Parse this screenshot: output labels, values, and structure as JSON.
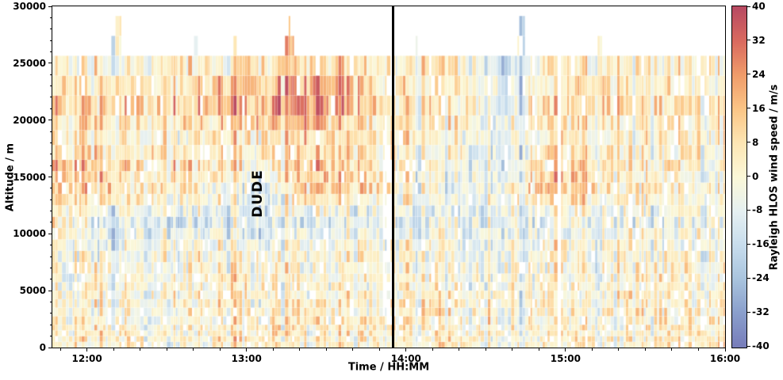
{
  "axes": {
    "x": {
      "label": "Time / HH:MM",
      "min": 11.783,
      "max": 16.0,
      "tick_values": [
        12,
        13,
        14,
        15,
        16
      ],
      "ticks": [
        "12:00",
        "13:00",
        "14:00",
        "15:00",
        "16:00"
      ],
      "minor_step_minutes": 10
    },
    "y": {
      "label": "Altitude / m",
      "min": 0,
      "max": 30000,
      "tick_values": [
        0,
        5000,
        10000,
        15000,
        20000,
        25000,
        30000
      ],
      "ticks": [
        "0",
        "5000",
        "10000",
        "15000",
        "20000",
        "25000",
        "30000"
      ],
      "minor_step": 1000
    }
  },
  "chart_data": {
    "type": "heatmap",
    "title": "",
    "x": {
      "min": 11.783,
      "max": 16.0,
      "unit": "hours"
    },
    "y": {
      "min": 0,
      "max": 30000,
      "unit": "m"
    },
    "color": {
      "min": -40,
      "max": 40,
      "label": "Rayleigh HLOS wind speed / m/s"
    },
    "colorbar_tick_values": [
      40,
      32,
      24,
      16,
      8,
      0,
      -8,
      -16,
      -24,
      -32,
      -40
    ],
    "colorbar_ticks": [
      "40",
      "32",
      "24",
      "16",
      "8",
      "0",
      "-8",
      "-16",
      "-24",
      "-32",
      "-40"
    ],
    "colormap_stops": [
      {
        "v": -40,
        "c": "#777dba"
      },
      {
        "v": -32,
        "c": "#8a9fcc"
      },
      {
        "v": -24,
        "c": "#a9c4de"
      },
      {
        "v": -16,
        "c": "#c8dded"
      },
      {
        "v": -8,
        "c": "#e6f0f1"
      },
      {
        "v": 0,
        "c": "#fbf8d8"
      },
      {
        "v": 8,
        "c": "#fde6b4"
      },
      {
        "v": 16,
        "c": "#fbc586"
      },
      {
        "v": 24,
        "c": "#f09c6a"
      },
      {
        "v": 32,
        "c": "#d96a5f"
      },
      {
        "v": 40,
        "c": "#b84a62"
      }
    ],
    "grid": {
      "time_centers": [
        11.875,
        12.125,
        12.375,
        12.625,
        12.875,
        13.125,
        13.375,
        13.625,
        13.875,
        14.125,
        14.375,
        14.625,
        14.875,
        15.125,
        15.375,
        15.625,
        15.875
      ],
      "altitude_centers": [
        1250,
        3750,
        6250,
        8750,
        11250,
        13750,
        16250,
        18750,
        21250,
        23750,
        26250,
        28750
      ],
      "values": [
        [
          4,
          6,
          2,
          -2,
          6,
          4,
          2,
          6,
          4,
          2,
          6,
          2,
          4,
          6,
          2,
          4,
          6
        ],
        [
          6,
          2,
          -4,
          4,
          2,
          -2,
          4,
          6,
          2,
          4,
          -2,
          4,
          2,
          0,
          4,
          2,
          4
        ],
        [
          -2,
          4,
          2,
          -2,
          4,
          2,
          -2,
          2,
          4,
          0,
          -4,
          2,
          0,
          -2,
          2,
          4,
          0
        ],
        [
          4,
          -4,
          0,
          2,
          -2,
          -6,
          2,
          4,
          0,
          -2,
          -4,
          0,
          2,
          4,
          0,
          -2,
          0
        ],
        [
          8,
          -12,
          -14,
          -12,
          -10,
          -16,
          -12,
          -10,
          -8,
          -10,
          -8,
          -6,
          -10,
          -8,
          -4,
          -6,
          -4
        ],
        [
          14,
          16,
          6,
          8,
          -4,
          -14,
          12,
          18,
          8,
          -8,
          -10,
          6,
          16,
          14,
          0,
          2,
          0
        ],
        [
          18,
          12,
          8,
          10,
          6,
          -2,
          16,
          14,
          6,
          -4,
          -6,
          -8,
          10,
          12,
          2,
          4,
          2
        ],
        [
          6,
          4,
          2,
          4,
          6,
          8,
          14,
          8,
          4,
          2,
          0,
          -4,
          4,
          6,
          2,
          4,
          4
        ],
        [
          16,
          14,
          12,
          15,
          18,
          22,
          28,
          24,
          12,
          6,
          4,
          -6,
          8,
          14,
          8,
          8,
          8
        ],
        [
          8,
          6,
          5,
          6,
          8,
          10,
          18,
          14,
          6,
          4,
          2,
          -8,
          4,
          6,
          4,
          4,
          4
        ],
        [
          4,
          2,
          0,
          4,
          2,
          4,
          16,
          6,
          2,
          0,
          -2,
          -12,
          2,
          4,
          0,
          2,
          0
        ],
        [
          0,
          5,
          0,
          0,
          0,
          0,
          14,
          0,
          0,
          0,
          0,
          -14,
          0,
          0,
          0,
          0,
          0
        ]
      ]
    },
    "plumes": [
      {
        "time": 12.2,
        "top_m": 30000,
        "delta": 2,
        "width": 0.03
      },
      {
        "time": 12.16,
        "top_m": 27800,
        "delta": -5,
        "width": 0.018
      },
      {
        "time": 12.68,
        "top_m": 27000,
        "delta": 2,
        "width": 0.018
      },
      {
        "time": 12.93,
        "top_m": 26600,
        "delta": 4,
        "width": 0.015
      },
      {
        "time": 13.27,
        "top_m": 28600,
        "delta": 10,
        "width": 0.035
      },
      {
        "time": 14.07,
        "top_m": 26400,
        "delta": -4,
        "width": 0.015
      },
      {
        "time": 14.73,
        "top_m": 29000,
        "delta": -10,
        "width": 0.032
      },
      {
        "time": 15.22,
        "top_m": 26800,
        "delta": -6,
        "width": 0.025
      },
      {
        "time": 15.55,
        "top_m": 26000,
        "delta": 0,
        "width": 0.012
      }
    ],
    "annotation": {
      "text": "DUDE",
      "time": 13.07,
      "altitude_m": 13600
    },
    "event_line_time": 13.92,
    "render": {
      "seed": 11,
      "noise_amp": 12,
      "col_offset_amp": 14
    }
  }
}
